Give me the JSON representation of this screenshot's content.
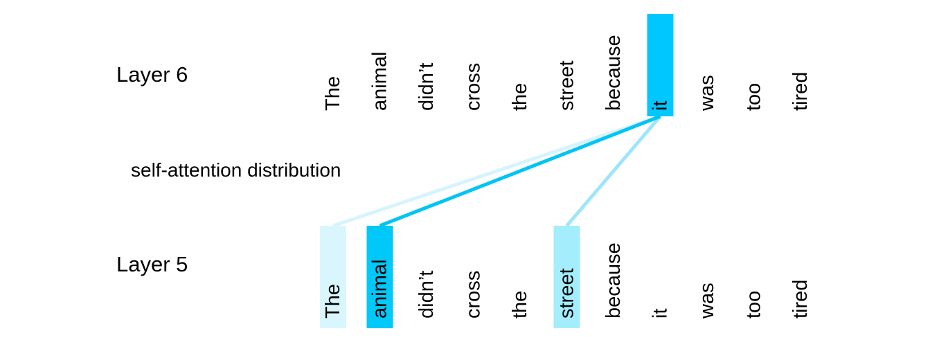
{
  "layers": {
    "top": {
      "label": "Layer 6"
    },
    "bottom": {
      "label": "Layer 5"
    }
  },
  "caption": "self-attention distribution",
  "tokens": [
    "The",
    "animal",
    "didn’t",
    "cross",
    "the",
    "street",
    "because",
    "it",
    "was",
    "too",
    "tired"
  ],
  "query": {
    "token_index": 7,
    "highlight_color": "#00c8ff"
  },
  "attention": [
    {
      "token_index": 0,
      "color": "#d9f6fe",
      "line_color": "#d6f4fd"
    },
    {
      "token_index": 1,
      "color": "#00c8f8",
      "line_color": "#00c4f4"
    },
    {
      "token_index": 5,
      "color": "#a4edfd",
      "line_color": "#9de6fa"
    }
  ]
}
